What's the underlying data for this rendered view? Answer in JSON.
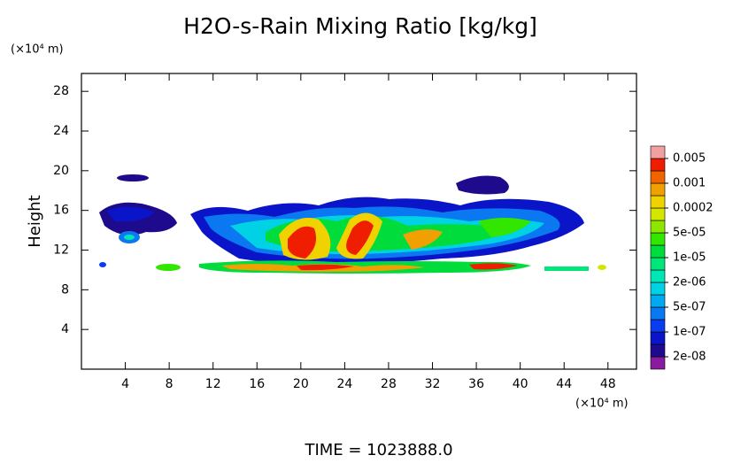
{
  "chart_data": {
    "type": "contour",
    "title": "H2O-s-Rain Mixing Ratio [kg/kg]",
    "y_label": "Height",
    "y_unit_label": "(×10⁴ m)",
    "x_unit_label": "(×10⁴ m)",
    "footer": "TIME = 1023888.0",
    "xlim": [
      0,
      50.6
    ],
    "ylim": [
      0,
      29.8
    ],
    "xticks": [
      4,
      8,
      12,
      16,
      20,
      24,
      28,
      32,
      36,
      40,
      44,
      48
    ],
    "yticks": [
      4,
      8,
      12,
      16,
      20,
      24,
      28
    ],
    "levels": [
      {
        "value": 2e-08,
        "label": "2e-08"
      },
      {
        "value": 1e-07,
        "label": "1e-07"
      },
      {
        "value": 5e-07,
        "label": "5e-07"
      },
      {
        "value": 2e-06,
        "label": "2e-06"
      },
      {
        "value": 1e-05,
        "label": "1e-05"
      },
      {
        "value": 5e-05,
        "label": "5e-05"
      },
      0.0002,
      0.001,
      0.005
    ],
    "colorbar_colors": [
      "#8a1aa0",
      "#1e0a8c",
      "#0a14c8",
      "#0a3cf0",
      "#0a78f0",
      "#00aaf0",
      "#00d2e6",
      "#00e6b4",
      "#00e678",
      "#00dc3c",
      "#32e600",
      "#8ce600",
      "#d2e600",
      "#f0d200",
      "#f0a000",
      "#f06400",
      "#f01e00",
      "#f0a0a0"
    ]
  }
}
